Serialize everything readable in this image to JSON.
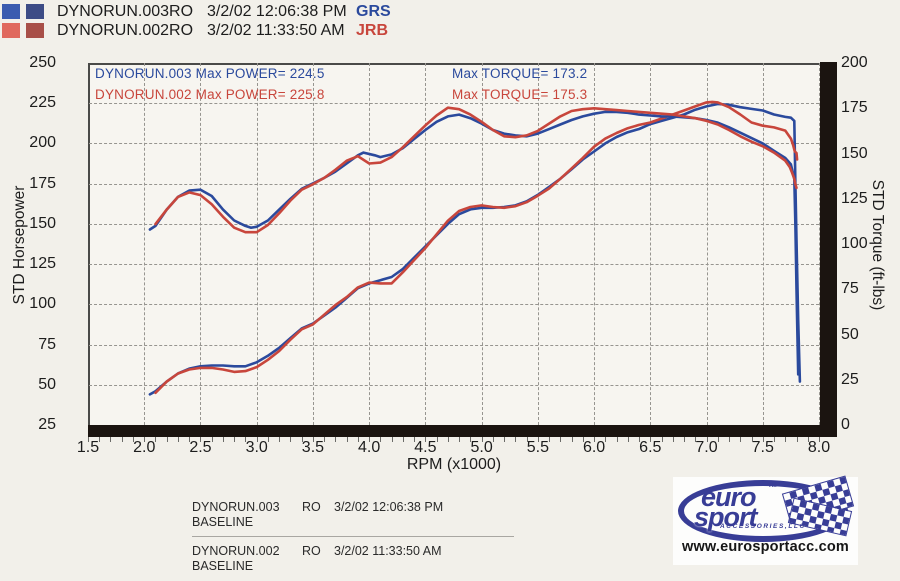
{
  "colors": {
    "blue": "#2b4a9d",
    "red": "#c8463c",
    "paper": "#f2f0ea",
    "bar_black": "#1b1410"
  },
  "header": {
    "runs": [
      {
        "file": "DYNORUN.003RO",
        "datetime": "3/2/02 12:06:38 PM",
        "operator": "GRS",
        "swatches": [
          "#3b5cb0",
          "#3d4c86"
        ]
      },
      {
        "file": "DYNORUN.002RO",
        "datetime": "3/2/02 11:33:50 AM",
        "operator": "JRB",
        "swatches": [
          "#e0695e",
          "#a84f48"
        ]
      }
    ]
  },
  "annotations": {
    "power_blue": "DYNORUN.003  Max POWER= 224.5",
    "power_red": "DYNORUN.002  Max POWER= 225.8",
    "torque_blue": "Max TORQUE= 173.2",
    "torque_red": "Max TORQUE= 175.3"
  },
  "chart_data": {
    "type": "line",
    "xlabel": "RPM (x1000)",
    "ylabel_left": "STD Horsepower",
    "ylabel_right": "STD Torque (ft-lbs)",
    "xlim": [
      1.5,
      8.0
    ],
    "ylim_left": [
      25,
      250
    ],
    "ylim_right": [
      0,
      200
    ],
    "grid": true,
    "x_ticks": [
      "1.5",
      "2.0",
      "2.5",
      "3.0",
      "3.5",
      "4.0",
      "4.5",
      "5.0",
      "5.5",
      "6.0",
      "6.5",
      "7.0",
      "7.5",
      "8.0"
    ],
    "left_ticks": [
      "250",
      "225",
      "200",
      "175",
      "150",
      "125",
      "100",
      "75",
      "50",
      "25"
    ],
    "right_ticks": [
      "200",
      "175",
      "150",
      "125",
      "100",
      "75",
      "50",
      "25",
      "0"
    ],
    "max_values": {
      "run003_power": 224.5,
      "run003_torque": 173.2,
      "run002_power": 225.8,
      "run002_torque": 175.3
    },
    "series": [
      {
        "name": "DYNORUN.003 Horsepower",
        "axis": "left",
        "color": "#2b4a9d",
        "points": [
          [
            2.05,
            44
          ],
          [
            2.1,
            46
          ],
          [
            2.2,
            52
          ],
          [
            2.3,
            57
          ],
          [
            2.4,
            60
          ],
          [
            2.5,
            61.5
          ],
          [
            2.6,
            62
          ],
          [
            2.7,
            62
          ],
          [
            2.8,
            61.5
          ],
          [
            2.9,
            61.5
          ],
          [
            3.0,
            64
          ],
          [
            3.1,
            68
          ],
          [
            3.2,
            73
          ],
          [
            3.3,
            79
          ],
          [
            3.4,
            85
          ],
          [
            3.5,
            88
          ],
          [
            3.6,
            93
          ],
          [
            3.7,
            98
          ],
          [
            3.8,
            104
          ],
          [
            3.9,
            110
          ],
          [
            4.0,
            113
          ],
          [
            4.1,
            115
          ],
          [
            4.2,
            117
          ],
          [
            4.3,
            122
          ],
          [
            4.4,
            129
          ],
          [
            4.5,
            136
          ],
          [
            4.6,
            143
          ],
          [
            4.7,
            150
          ],
          [
            4.8,
            156
          ],
          [
            4.9,
            159
          ],
          [
            5.0,
            160
          ],
          [
            5.1,
            160
          ],
          [
            5.2,
            160.5
          ],
          [
            5.3,
            161.5
          ],
          [
            5.4,
            164
          ],
          [
            5.5,
            168
          ],
          [
            5.6,
            173
          ],
          [
            5.7,
            178
          ],
          [
            5.8,
            184
          ],
          [
            5.9,
            190
          ],
          [
            6.0,
            195
          ],
          [
            6.1,
            200
          ],
          [
            6.2,
            204
          ],
          [
            6.3,
            207
          ],
          [
            6.4,
            209
          ],
          [
            6.5,
            212
          ],
          [
            6.6,
            214
          ],
          [
            6.7,
            216
          ],
          [
            6.8,
            218
          ],
          [
            6.9,
            221
          ],
          [
            7.0,
            223
          ],
          [
            7.1,
            224.5
          ],
          [
            7.2,
            224
          ],
          [
            7.3,
            222.5
          ],
          [
            7.4,
            221.5
          ],
          [
            7.5,
            220.5
          ],
          [
            7.6,
            218
          ],
          [
            7.7,
            216.5
          ],
          [
            7.75,
            216
          ],
          [
            7.78,
            214
          ],
          [
            7.79,
            175
          ],
          [
            7.8,
            140
          ],
          [
            7.815,
            90
          ],
          [
            7.83,
            52
          ]
        ]
      },
      {
        "name": "DYNORUN.002 Horsepower",
        "axis": "left",
        "color": "#c8463c",
        "points": [
          [
            2.1,
            45
          ],
          [
            2.2,
            52
          ],
          [
            2.3,
            57
          ],
          [
            2.4,
            59.5
          ],
          [
            2.5,
            60.5
          ],
          [
            2.6,
            60.5
          ],
          [
            2.7,
            59.5
          ],
          [
            2.8,
            58
          ],
          [
            2.9,
            58.5
          ],
          [
            3.0,
            61
          ],
          [
            3.1,
            65.5
          ],
          [
            3.2,
            71
          ],
          [
            3.3,
            78
          ],
          [
            3.4,
            84.5
          ],
          [
            3.5,
            87.5
          ],
          [
            3.6,
            93.5
          ],
          [
            3.7,
            99.5
          ],
          [
            3.8,
            104.5
          ],
          [
            3.9,
            110.5
          ],
          [
            4.0,
            113.5
          ],
          [
            4.1,
            113
          ],
          [
            4.2,
            113
          ],
          [
            4.3,
            120
          ],
          [
            4.4,
            127.5
          ],
          [
            4.5,
            135
          ],
          [
            4.6,
            143.5
          ],
          [
            4.7,
            152
          ],
          [
            4.8,
            158
          ],
          [
            4.9,
            160.5
          ],
          [
            5.0,
            161.5
          ],
          [
            5.1,
            160.5
          ],
          [
            5.2,
            160
          ],
          [
            5.3,
            161
          ],
          [
            5.4,
            163.5
          ],
          [
            5.5,
            167.5
          ],
          [
            5.6,
            172
          ],
          [
            5.7,
            178
          ],
          [
            5.8,
            184.5
          ],
          [
            5.9,
            191
          ],
          [
            6.0,
            198
          ],
          [
            6.1,
            203
          ],
          [
            6.2,
            206.5
          ],
          [
            6.3,
            209.5
          ],
          [
            6.4,
            211.5
          ],
          [
            6.5,
            213
          ],
          [
            6.6,
            215.5
          ],
          [
            6.7,
            218
          ],
          [
            6.8,
            220.5
          ],
          [
            6.9,
            223
          ],
          [
            7.0,
            225.5
          ],
          [
            7.05,
            225.8
          ],
          [
            7.1,
            225.5
          ],
          [
            7.2,
            222.5
          ],
          [
            7.3,
            218
          ],
          [
            7.4,
            213
          ],
          [
            7.5,
            211
          ],
          [
            7.6,
            210
          ],
          [
            7.7,
            208
          ],
          [
            7.75,
            203
          ],
          [
            7.77,
            199
          ],
          [
            7.785,
            195
          ],
          [
            7.8,
            194
          ],
          [
            7.805,
            190
          ]
        ]
      },
      {
        "name": "DYNORUN.003 Torque",
        "axis": "right",
        "color": "#2b4a9d",
        "points": [
          [
            2.05,
            108
          ],
          [
            2.1,
            110
          ],
          [
            2.2,
            119
          ],
          [
            2.3,
            126
          ],
          [
            2.4,
            129.5
          ],
          [
            2.5,
            130
          ],
          [
            2.6,
            126.5
          ],
          [
            2.7,
            119
          ],
          [
            2.8,
            113
          ],
          [
            2.9,
            110
          ],
          [
            2.95,
            109
          ],
          [
            3.0,
            109.5
          ],
          [
            3.1,
            113
          ],
          [
            3.2,
            119
          ],
          [
            3.3,
            125
          ],
          [
            3.4,
            130.5
          ],
          [
            3.5,
            133.5
          ],
          [
            3.6,
            136.5
          ],
          [
            3.7,
            140
          ],
          [
            3.8,
            144.5
          ],
          [
            3.9,
            149
          ],
          [
            3.95,
            150.5
          ],
          [
            4.05,
            149
          ],
          [
            4.1,
            148
          ],
          [
            4.2,
            149.5
          ],
          [
            4.3,
            153
          ],
          [
            4.4,
            158
          ],
          [
            4.5,
            163
          ],
          [
            4.6,
            167.5
          ],
          [
            4.7,
            170.5
          ],
          [
            4.8,
            171.5
          ],
          [
            4.9,
            169.5
          ],
          [
            5.0,
            166.5
          ],
          [
            5.1,
            163
          ],
          [
            5.2,
            161
          ],
          [
            5.3,
            160
          ],
          [
            5.4,
            159.5
          ],
          [
            5.5,
            161
          ],
          [
            5.6,
            163.5
          ],
          [
            5.7,
            166
          ],
          [
            5.8,
            168.5
          ],
          [
            5.9,
            170.5
          ],
          [
            6.0,
            172
          ],
          [
            6.1,
            173
          ],
          [
            6.2,
            173
          ],
          [
            6.3,
            172.5
          ],
          [
            6.4,
            171.5
          ],
          [
            6.5,
            171
          ],
          [
            6.6,
            170.5
          ],
          [
            6.7,
            170.5
          ],
          [
            6.8,
            170
          ],
          [
            6.9,
            169.5
          ],
          [
            7.0,
            168.5
          ],
          [
            7.1,
            167
          ],
          [
            7.2,
            164.5
          ],
          [
            7.3,
            161.5
          ],
          [
            7.4,
            158.5
          ],
          [
            7.5,
            155.5
          ],
          [
            7.6,
            151.5
          ],
          [
            7.7,
            147.5
          ],
          [
            7.75,
            144
          ],
          [
            7.78,
            136
          ],
          [
            7.79,
            110
          ],
          [
            7.8,
            75
          ],
          [
            7.815,
            28
          ]
        ]
      },
      {
        "name": "DYNORUN.002 Torque",
        "axis": "right",
        "color": "#c8463c",
        "points": [
          [
            2.1,
            111
          ],
          [
            2.2,
            119
          ],
          [
            2.3,
            126
          ],
          [
            2.4,
            128.5
          ],
          [
            2.5,
            127
          ],
          [
            2.6,
            122
          ],
          [
            2.7,
            115
          ],
          [
            2.8,
            109
          ],
          [
            2.9,
            106.5
          ],
          [
            3.0,
            106.5
          ],
          [
            3.1,
            110.5
          ],
          [
            3.2,
            117
          ],
          [
            3.3,
            124
          ],
          [
            3.4,
            130
          ],
          [
            3.5,
            133
          ],
          [
            3.6,
            136.5
          ],
          [
            3.7,
            141
          ],
          [
            3.8,
            146
          ],
          [
            3.9,
            148.5
          ],
          [
            4.0,
            144.5
          ],
          [
            4.1,
            145
          ],
          [
            4.2,
            148
          ],
          [
            4.3,
            153.5
          ],
          [
            4.4,
            159.5
          ],
          [
            4.5,
            165.5
          ],
          [
            4.6,
            171
          ],
          [
            4.7,
            175.3
          ],
          [
            4.8,
            174.5
          ],
          [
            4.9,
            171.5
          ],
          [
            5.0,
            167.5
          ],
          [
            5.1,
            163
          ],
          [
            5.2,
            159.5
          ],
          [
            5.3,
            159
          ],
          [
            5.4,
            160
          ],
          [
            5.5,
            162.5
          ],
          [
            5.6,
            166.5
          ],
          [
            5.7,
            170.5
          ],
          [
            5.8,
            173.5
          ],
          [
            5.9,
            174.5
          ],
          [
            6.0,
            175
          ],
          [
            6.1,
            174.5
          ],
          [
            6.2,
            174
          ],
          [
            6.3,
            173.5
          ],
          [
            6.4,
            173
          ],
          [
            6.5,
            172.5
          ],
          [
            6.6,
            172
          ],
          [
            6.7,
            171.5
          ],
          [
            6.8,
            170.5
          ],
          [
            6.9,
            169.5
          ],
          [
            7.0,
            168
          ],
          [
            7.1,
            166
          ],
          [
            7.2,
            163
          ],
          [
            7.3,
            159.5
          ],
          [
            7.4,
            156.5
          ],
          [
            7.5,
            154
          ],
          [
            7.6,
            150.5
          ],
          [
            7.7,
            146
          ],
          [
            7.74,
            142.5
          ],
          [
            7.76,
            139.5
          ],
          [
            7.78,
            136
          ],
          [
            7.79,
            133
          ],
          [
            7.8,
            131
          ]
        ]
      }
    ]
  },
  "table": {
    "rows": [
      {
        "file": "DYNORUN.003",
        "type": "RO",
        "datetime": "3/2/02 12:06:38 PM",
        "line2": "BASELINE"
      },
      {
        "file": "DYNORUN.002",
        "type": "RO",
        "datetime": "3/2/02 11:33:50 AM",
        "line2": "BASELINE"
      }
    ]
  },
  "logo": {
    "word1": "euro",
    "word2": "sport",
    "tm": "TM",
    "sub": "ACCESSORIES,LLC",
    "url": "www.eurosportacc.com"
  }
}
